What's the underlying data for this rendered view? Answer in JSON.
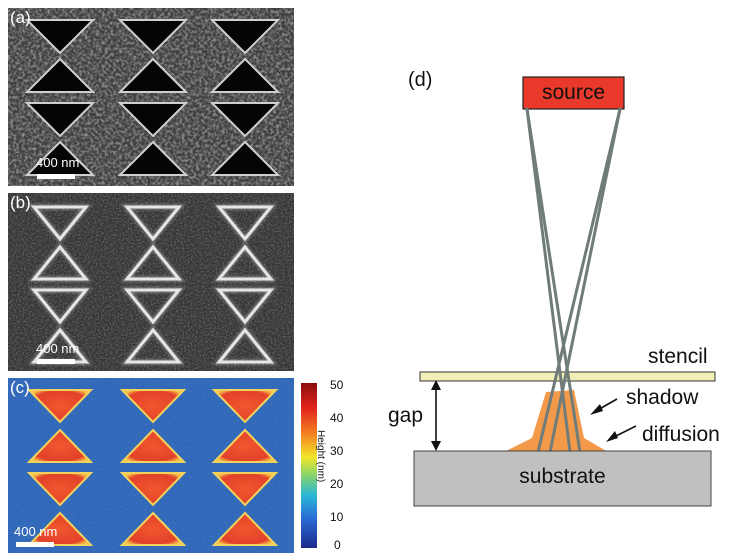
{
  "panels": {
    "a": {
      "label": "(a)",
      "scale_label": "400 nm"
    },
    "b": {
      "label": "(b)",
      "scale_label": "400 nm"
    },
    "c": {
      "label": "(c)",
      "scale_label": "400 nm",
      "colorbar": {
        "title": "Height (nm)",
        "ticks": [
          "50",
          "40",
          "30",
          "20",
          "10",
          "0"
        ]
      }
    },
    "d": {
      "label": "(d)",
      "source": "source",
      "stencil": "stencil",
      "gap": "gap",
      "shadow": "shadow",
      "diffusion": "diffusion",
      "substrate": "substrate"
    }
  },
  "colors": {
    "source_fill": "#e8392b",
    "stencil_fill": "#f2efb6",
    "deposit_fill": "#f39a4a",
    "substrate_fill": "#bfc1c1",
    "ray_stroke": "#6f7c7a",
    "afm_background": "#2a5fb0",
    "afm_triangle": "#e84a2c"
  }
}
